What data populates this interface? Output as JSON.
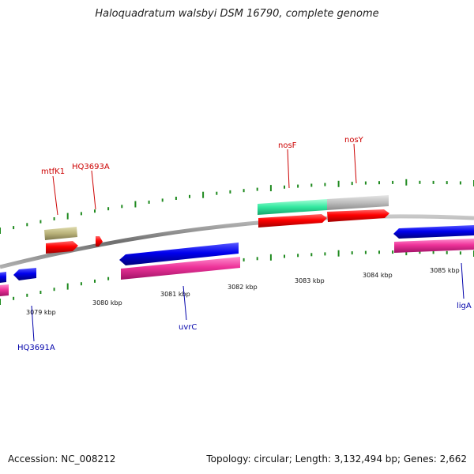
{
  "title": "Haloquadratum walsbyi DSM 16790, complete genome",
  "footer": {
    "accession": "Accession: NC_008212",
    "summary": "Topology: circular; Length: 3,132,494 bp; Genes: 2,662"
  },
  "colors": {
    "backbone": "#8a8a8a",
    "tick": "#1f8a1f",
    "forward_label": "#cc0000",
    "reverse_label": "#0000aa",
    "forward_cds": "#ff0000",
    "reverse_cds": "#0000ee",
    "reverse_cog": "#ee3399",
    "olive_cog": "#b9b27a",
    "teal_cog": "#33e8a0",
    "grey_cog": "#bdbdbd"
  },
  "scale_labels": [
    "3079 kbp",
    "3080 kbp",
    "3081 kbp",
    "3082 kbp",
    "3083 kbp",
    "3084 kbp",
    "3085 kbp"
  ],
  "gene_labels": {
    "forward": [
      "mtfK1",
      "HQ3693A",
      "nosF",
      "nosY"
    ],
    "reverse": [
      "HQ3691A",
      "uvrC",
      "ligA"
    ]
  }
}
